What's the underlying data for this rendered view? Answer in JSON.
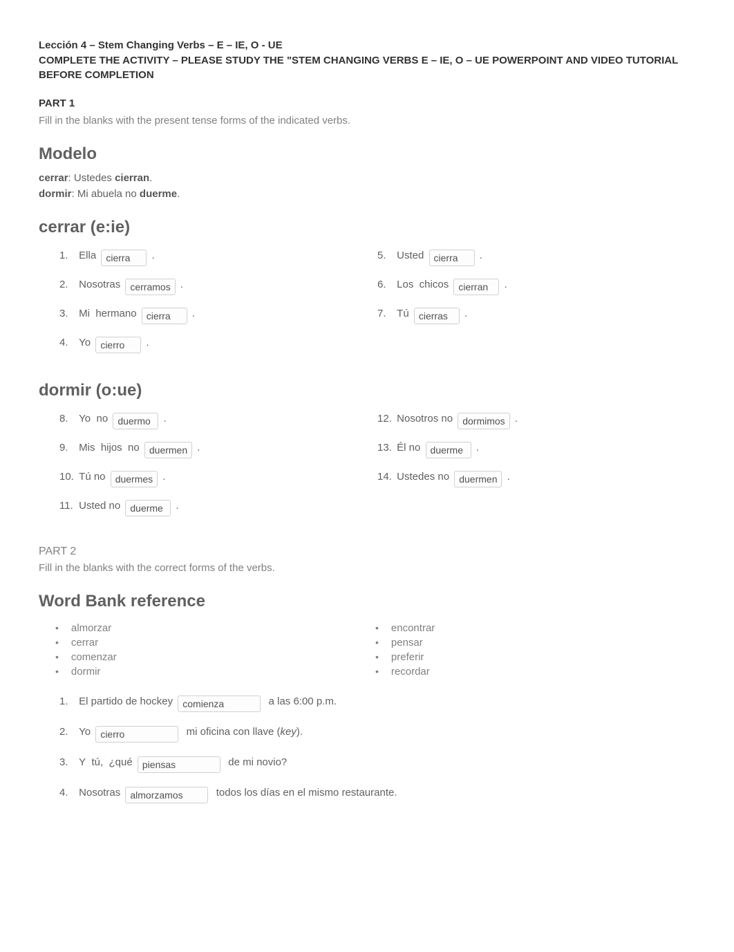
{
  "title": {
    "line1": "Lección 4 – Stem Changing Verbs – E – IE, O - UE",
    "line2": "COMPLETE THE ACTIVITY – PLEASE STUDY THE \"STEM CHANGING VERBS E – IE, O – UE POWERPOINT AND VIDEO TUTORIAL BEFORE COMPLETION"
  },
  "part1": {
    "heading": "PART 1",
    "instructions": "Fill in the blanks with the present tense forms of the indicated verbs."
  },
  "modelo": {
    "heading": "Modelo",
    "line1_verb": "cerrar",
    "line1_mid": ": Ustedes ",
    "line1_ans": "cierran",
    "line1_end": ".",
    "line2_verb": "dormir",
    "line2_mid": ": Mi abuela no ",
    "line2_ans": "duerme",
    "line2_end": "."
  },
  "cerrar": {
    "heading": "cerrar (e:ie)",
    "left": [
      {
        "n": "1.",
        "pre": "Ella",
        "ans": "cierra",
        "post": "."
      },
      {
        "n": "2.",
        "pre": "Nosotras",
        "ans": "cerramos",
        "post": "."
      },
      {
        "n": "3.",
        "pre": "Mi  hermano",
        "ans": "cierra",
        "post": "."
      },
      {
        "n": "4.",
        "pre": "Yo",
        "ans": "cierro",
        "post": "."
      }
    ],
    "right": [
      {
        "n": "5.",
        "pre": "Usted",
        "ans": "cierra",
        "post": "."
      },
      {
        "n": "6.",
        "pre": "Los  chicos",
        "ans": "cierran",
        "post": "."
      },
      {
        "n": "7.",
        "pre": "Tú",
        "ans": "cierras",
        "post": "."
      }
    ]
  },
  "dormir": {
    "heading": "dormir (o:ue)",
    "left": [
      {
        "n": "8.",
        "pre": "Yo  no",
        "ans": "duermo",
        "post": "."
      },
      {
        "n": "9.",
        "pre": "Mis  hijos  no",
        "ans": "duermen",
        "post": "."
      },
      {
        "n": "10.",
        "pre": "Tú no",
        "ans": "duermes",
        "post": "."
      },
      {
        "n": "11.",
        "pre": "Usted no",
        "ans": "duerme",
        "post": "."
      }
    ],
    "right": [
      {
        "n": "12.",
        "pre": "Nosotros no",
        "ans": "dormimos",
        "post": "."
      },
      {
        "n": "13.",
        "pre": "Él no",
        "ans": "duerme",
        "post": "."
      },
      {
        "n": "14.",
        "pre": "Ustedes no",
        "ans": "duermen",
        "post": "."
      }
    ]
  },
  "part2": {
    "heading": "PART 2",
    "instructions": "Fill in the blanks with the correct forms of the verbs.",
    "bank_heading": "Word Bank reference",
    "bank_left": [
      "almorzar",
      "cerrar",
      "comenzar",
      "dormir"
    ],
    "bank_right": [
      "encontrar",
      "pensar",
      "preferir",
      "recordar"
    ],
    "items": [
      {
        "n": "1.",
        "pre": "El partido de hockey",
        "ans": "comienza",
        "post": "a las 6:00 p.m."
      },
      {
        "n": "2.",
        "pre": "Yo",
        "ans": "cierro",
        "post": "mi oficina con llave (",
        "ital": "key",
        "post2": ")."
      },
      {
        "n": "3.",
        "pre": "Y  tú,  ¿qué",
        "ans": "piensas",
        "post": "de mi novio?"
      },
      {
        "n": "4.",
        "pre": "Nosotras",
        "ans": "almorzamos",
        "post": "todos los días en el mismo restaurante."
      }
    ]
  }
}
